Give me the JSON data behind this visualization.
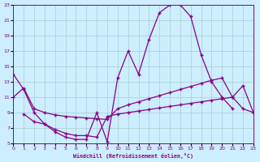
{
  "xlabel": "Windchill (Refroidissement éolien,°C)",
  "bg_color": "#cceeff",
  "line_color": "#880088",
  "grid_color": "#aacccc",
  "xlim": [
    0,
    23
  ],
  "ylim": [
    5,
    23
  ],
  "xtick_vals": [
    0,
    1,
    2,
    3,
    4,
    5,
    6,
    7,
    8,
    9,
    10,
    11,
    12,
    13,
    14,
    15,
    16,
    17,
    18,
    19,
    20,
    21,
    22,
    23
  ],
  "ytick_vals": [
    5,
    7,
    9,
    11,
    13,
    15,
    17,
    19,
    21,
    23
  ],
  "line1_x": [
    0,
    1,
    2,
    3,
    4,
    5,
    6,
    7,
    8,
    9,
    10,
    11,
    12,
    13,
    14,
    15,
    16,
    17,
    18,
    19,
    20,
    21
  ],
  "line1_y": [
    14.0,
    12.0,
    9.0,
    7.5,
    6.5,
    5.8,
    5.5,
    5.5,
    9.0,
    5.2,
    13.5,
    17.0,
    14.0,
    18.5,
    22.0,
    23.0,
    23.0,
    21.5,
    16.5,
    13.0,
    11.0,
    9.5
  ],
  "line2_x": [
    0,
    1,
    2,
    3,
    4,
    5,
    6,
    7,
    8,
    9,
    10,
    11,
    12,
    13,
    14,
    15,
    16,
    17,
    18,
    19,
    20,
    21,
    22,
    23
  ],
  "line2_y": [
    11.0,
    12.2,
    9.5,
    9.0,
    8.7,
    8.5,
    8.4,
    8.3,
    8.2,
    8.1,
    9.5,
    10.0,
    10.4,
    10.8,
    11.2,
    11.6,
    12.0,
    12.4,
    12.8,
    13.2,
    13.5,
    11.0,
    9.5,
    9.0
  ],
  "line3_x": [
    1,
    2,
    3,
    4,
    5,
    6,
    7,
    8,
    9,
    10,
    11,
    12,
    13,
    14,
    15,
    16,
    17,
    18,
    19,
    20,
    21,
    22,
    23
  ],
  "line3_y": [
    8.8,
    7.8,
    7.5,
    6.8,
    6.3,
    6.0,
    6.0,
    5.8,
    8.5,
    8.8,
    9.0,
    9.2,
    9.4,
    9.6,
    9.8,
    10.0,
    10.2,
    10.4,
    10.6,
    10.8,
    11.0,
    12.5,
    9.0
  ],
  "tick_fontsize": 4.5,
  "label_fontsize": 4.8,
  "linewidth": 0.9,
  "markersize": 2.5
}
